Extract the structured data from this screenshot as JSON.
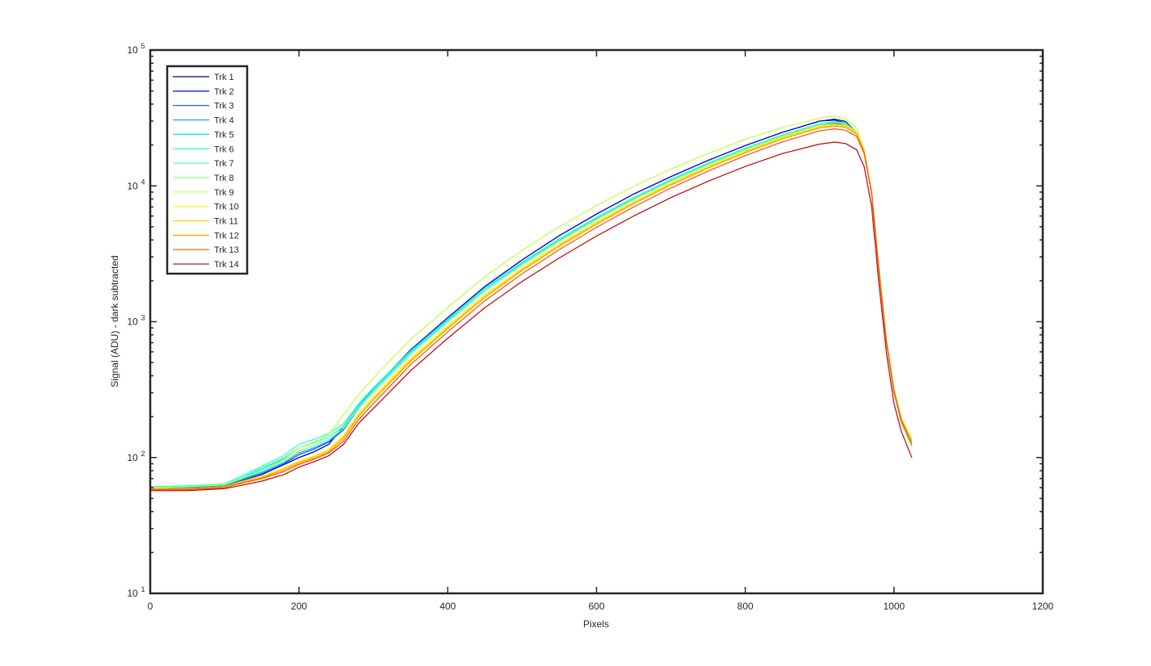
{
  "chart_data": {
    "type": "line",
    "xlabel": "Pixels",
    "ylabel": "Signal (ADU) - dark subtracted",
    "xlim": [
      0,
      1200
    ],
    "ylim": [
      10,
      100000
    ],
    "yscale": "log",
    "xticks": [
      0,
      200,
      400,
      600,
      800,
      1000,
      1200
    ],
    "yticks": [
      {
        "value": 10,
        "base": "10",
        "exp": "1"
      },
      {
        "value": 100,
        "base": "10",
        "exp": "2"
      },
      {
        "value": 1000,
        "base": "10",
        "exp": "3"
      },
      {
        "value": 10000,
        "base": "10",
        "exp": "4"
      },
      {
        "value": 100000,
        "base": "10",
        "exp": "5"
      }
    ],
    "grid": false,
    "legend_position": "top-left",
    "x": [
      0,
      50,
      100,
      120,
      150,
      180,
      200,
      220,
      240,
      260,
      280,
      300,
      350,
      400,
      450,
      500,
      550,
      600,
      650,
      700,
      750,
      800,
      850,
      900,
      920,
      935,
      950,
      960,
      970,
      980,
      990,
      1000,
      1010,
      1024
    ],
    "series": [
      {
        "name": "Trk 1",
        "color": "#00008f",
        "values": [
          59,
          59,
          62,
          67,
          75,
          89,
          100,
          110,
          125,
          170,
          240,
          320,
          620,
          1070,
          1820,
          2850,
          4300,
          6200,
          8700,
          11700,
          15400,
          19800,
          24800,
          30000,
          31000,
          29800,
          24500,
          17500,
          8800,
          2300,
          700,
          300,
          180,
          120
        ]
      },
      {
        "name": "Trk 2",
        "color": "#0000ef",
        "values": [
          59,
          59,
          62,
          67,
          75,
          89,
          100,
          110,
          125,
          170,
          240,
          320,
          620,
          1070,
          1820,
          2850,
          4300,
          6200,
          8700,
          11700,
          15400,
          19800,
          24800,
          30000,
          30500,
          29000,
          24500,
          17500,
          8800,
          2300,
          700,
          300,
          180,
          120
        ]
      },
      {
        "name": "Trk 3",
        "color": "#0050ff",
        "values": [
          59,
          59,
          61,
          67,
          76,
          90,
          105,
          115,
          130,
          160,
          230,
          305,
          580,
          1000,
          1700,
          2650,
          3950,
          5700,
          8000,
          10900,
          14400,
          18600,
          23300,
          28200,
          29000,
          27900,
          24200,
          17500,
          8800,
          2300,
          700,
          300,
          180,
          120
        ]
      },
      {
        "name": "Trk 4",
        "color": "#00a0ff",
        "values": [
          60,
          60,
          62,
          68,
          78,
          92,
          108,
          118,
          132,
          162,
          232,
          308,
          585,
          1005,
          1710,
          2660,
          3960,
          5720,
          8020,
          10920,
          14420,
          18620,
          23320,
          28220,
          29300,
          28500,
          24400,
          17500,
          8800,
          2300,
          700,
          300,
          180,
          120
        ]
      },
      {
        "name": "Trk 5",
        "color": "#00e0ff",
        "values": [
          60,
          61,
          63,
          70,
          82,
          98,
          118,
          128,
          142,
          170,
          240,
          318,
          600,
          1030,
          1760,
          2720,
          4050,
          5830,
          8180,
          11100,
          14650,
          18900,
          23600,
          28600,
          29600,
          28800,
          24600,
          17600,
          8800,
          2300,
          700,
          300,
          180,
          120
        ]
      },
      {
        "name": "Trk 6",
        "color": "#20ffdf",
        "values": [
          61,
          62,
          64,
          72,
          86,
          104,
          125,
          136,
          150,
          178,
          248,
          326,
          610,
          1045,
          1780,
          2740,
          4080,
          5860,
          8200,
          11150,
          14700,
          18950,
          23700,
          28700,
          29800,
          29000,
          24700,
          17600,
          8800,
          2300,
          700,
          300,
          180,
          120
        ]
      },
      {
        "name": "Trk 7",
        "color": "#50ffaf",
        "values": [
          60,
          61,
          63,
          70,
          84,
          100,
          118,
          128,
          142,
          168,
          236,
          310,
          585,
          1005,
          1710,
          2650,
          3960,
          5700,
          8000,
          10900,
          14400,
          18600,
          23300,
          28200,
          29300,
          28600,
          24600,
          17600,
          8800,
          2300,
          700,
          300,
          180,
          120
        ]
      },
      {
        "name": "Trk 8",
        "color": "#80ff80",
        "values": [
          60,
          61,
          63,
          69,
          80,
          95,
          112,
          122,
          136,
          164,
          232,
          305,
          578,
          995,
          1690,
          2620,
          3920,
          5650,
          7950,
          10850,
          14350,
          18600,
          23300,
          28300,
          29500,
          28800,
          24700,
          17700,
          8900,
          2300,
          700,
          300,
          180,
          120
        ]
      },
      {
        "name": "Trk 9",
        "color": "#bfff40",
        "values": [
          60,
          61,
          63,
          69,
          80,
          97,
          118,
          130,
          148,
          205,
          290,
          385,
          740,
          1270,
          2150,
          3350,
          5000,
          7150,
          9900,
          13300,
          17300,
          22000,
          26900,
          31500,
          32500,
          31300,
          26500,
          18300,
          9000,
          2400,
          720,
          310,
          190,
          130
        ]
      },
      {
        "name": "Trk 10",
        "color": "#efff10",
        "values": [
          59,
          59,
          61,
          66,
          73,
          84,
          95,
          103,
          115,
          145,
          210,
          280,
          535,
          930,
          1580,
          2480,
          3730,
          5420,
          7650,
          10500,
          13950,
          18100,
          22800,
          27500,
          28500,
          27800,
          24600,
          18000,
          9100,
          2400,
          730,
          320,
          195,
          135
        ]
      },
      {
        "name": "Trk 11",
        "color": "#ffcf00",
        "values": [
          59,
          59,
          61,
          66,
          72,
          83,
          93,
          101,
          113,
          142,
          205,
          272,
          522,
          910,
          1545,
          2430,
          3660,
          5320,
          7520,
          10330,
          13730,
          17830,
          22480,
          27100,
          28100,
          27400,
          24400,
          18000,
          9100,
          2400,
          730,
          320,
          195,
          135
        ]
      },
      {
        "name": "Trk 12",
        "color": "#ff9f00",
        "values": [
          59,
          59,
          61,
          65,
          71,
          81,
          91,
          99,
          110,
          138,
          200,
          265,
          510,
          890,
          1510,
          2380,
          3590,
          5220,
          7380,
          10150,
          13500,
          17550,
          22150,
          26700,
          27600,
          26900,
          24000,
          17800,
          9000,
          2350,
          720,
          315,
          190,
          130
        ]
      },
      {
        "name": "Trk 13",
        "color": "#ff5000",
        "values": [
          58,
          58,
          60,
          64,
          70,
          79,
          89,
          97,
          108,
          132,
          190,
          250,
          482,
          842,
          1430,
          2250,
          3400,
          4950,
          7000,
          9650,
          12850,
          16700,
          21100,
          25400,
          26300,
          25700,
          23100,
          17200,
          8800,
          2300,
          700,
          305,
          185,
          125
        ]
      },
      {
        "name": "Trk 14",
        "color": "#c00000",
        "values": [
          57,
          57,
          59,
          62,
          67,
          75,
          85,
          93,
          103,
          125,
          178,
          230,
          435,
          755,
          1270,
          1980,
          2950,
          4270,
          6000,
          8200,
          10800,
          13900,
          17300,
          20300,
          21000,
          20500,
          18400,
          13800,
          7000,
          1850,
          580,
          250,
          155,
          100
        ]
      }
    ]
  }
}
